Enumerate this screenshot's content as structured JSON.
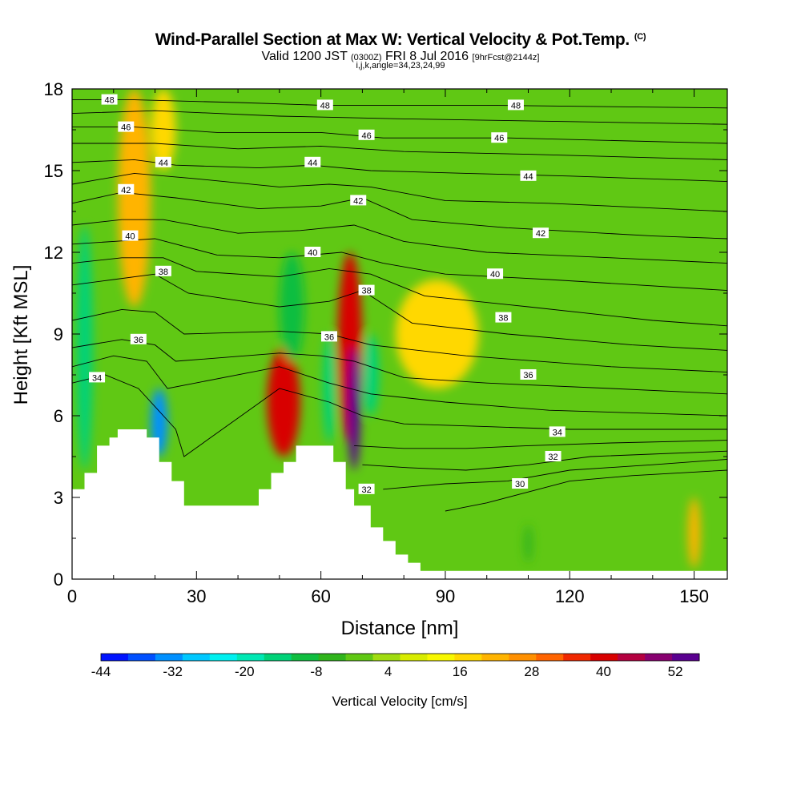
{
  "title": {
    "main": "Wind-Parallel Section at Max W: Vertical Velocity & Pot.Temp.",
    "mark": "(C)",
    "valid_prefix": "Valid 1200 JST",
    "utc": "(0300Z)",
    "date": "FRI 8 Jul 2016",
    "forecast": "[9hrFcst@2144z]",
    "indices": "i,j,k,angle=34,23,24,99"
  },
  "chart_data": {
    "type": "heatmap",
    "xlabel": "Distance [nm]",
    "ylabel": "Height [Kft MSL]",
    "xlim": [
      0,
      158
    ],
    "ylim": [
      0,
      18
    ],
    "x_ticks": [
      0,
      30,
      60,
      90,
      120,
      150
    ],
    "y_ticks": [
      0,
      3,
      6,
      9,
      12,
      15,
      18
    ],
    "colorbar": {
      "label": "Vertical Velocity [cm/s]",
      "tick_labels": [
        "-44",
        "-32",
        "-20",
        "-8",
        "4",
        "16",
        "28",
        "40",
        "52"
      ],
      "tick_values": [
        -44,
        -32,
        -20,
        -8,
        4,
        16,
        28,
        40,
        52
      ],
      "min": -44,
      "max": 56,
      "step": 4,
      "colors": [
        "#0014ff",
        "#0050ff",
        "#0090ff",
        "#00c8ff",
        "#00f0f0",
        "#00e8b4",
        "#00d278",
        "#10be40",
        "#30b41c",
        "#60c814",
        "#a0dc10",
        "#d8ec00",
        "#f8f800",
        "#ffd800",
        "#ffb400",
        "#ff9000",
        "#ff6400",
        "#f02800",
        "#d80000",
        "#b40040",
        "#880070",
        "#5a0090"
      ]
    },
    "background_color": "#60c814",
    "updraft_cells": [
      {
        "x": 15,
        "ybot": 10,
        "ytop": 18,
        "w": 4,
        "value": 12
      },
      {
        "x": 22,
        "ybot": 15,
        "ytop": 18,
        "w": 3,
        "value": 8
      },
      {
        "x": 51,
        "ybot": 4.5,
        "ytop": 8.5,
        "w": 4,
        "value": 28
      },
      {
        "x": 67,
        "ybot": 5,
        "ytop": 12,
        "w": 3,
        "value": 28
      },
      {
        "x": 68,
        "ybot": 4,
        "ytop": 8.5,
        "w": 1.5,
        "value": 44
      },
      {
        "x": 88,
        "ybot": 7,
        "ytop": 11,
        "w": 10,
        "value": 8
      },
      {
        "x": 150,
        "ybot": 0.4,
        "ytop": 3,
        "w": 1.5,
        "value": 12
      }
    ],
    "downdraft_cells": [
      {
        "x": 3,
        "ybot": 4,
        "ytop": 13,
        "w": 2,
        "value": -20
      },
      {
        "x": 21,
        "ybot": 4.5,
        "ytop": 7,
        "w": 2,
        "value": -36
      },
      {
        "x": 53,
        "ybot": 8,
        "ytop": 12,
        "w": 3,
        "value": -16
      },
      {
        "x": 62,
        "ybot": 5,
        "ytop": 9,
        "w": 1.5,
        "value": -20
      },
      {
        "x": 72,
        "ybot": 6,
        "ytop": 9,
        "w": 2,
        "value": -20
      },
      {
        "x": 110,
        "ybot": 0.6,
        "ytop": 2,
        "w": 1,
        "value": -12
      }
    ],
    "terrain": [
      [
        0,
        3.3
      ],
      [
        3,
        3.3
      ],
      [
        3,
        3.9
      ],
      [
        6,
        3.9
      ],
      [
        6,
        4.9
      ],
      [
        9,
        4.9
      ],
      [
        9,
        5.2
      ],
      [
        11,
        5.2
      ],
      [
        11,
        5.5
      ],
      [
        18,
        5.5
      ],
      [
        18,
        5.2
      ],
      [
        21,
        5.2
      ],
      [
        21,
        4.3
      ],
      [
        24,
        4.3
      ],
      [
        24,
        3.6
      ],
      [
        27,
        3.6
      ],
      [
        27,
        2.7
      ],
      [
        30,
        2.7
      ],
      [
        30,
        2.7
      ],
      [
        42,
        2.7
      ],
      [
        42,
        2.7
      ],
      [
        45,
        2.7
      ],
      [
        45,
        3.3
      ],
      [
        48,
        3.3
      ],
      [
        48,
        3.9
      ],
      [
        51,
        3.9
      ],
      [
        51,
        4.3
      ],
      [
        54,
        4.3
      ],
      [
        54,
        4.9
      ],
      [
        63,
        4.9
      ],
      [
        63,
        4.3
      ],
      [
        66,
        4.3
      ],
      [
        66,
        3.3
      ],
      [
        68,
        3.3
      ],
      [
        68,
        2.7
      ],
      [
        72,
        2.7
      ],
      [
        72,
        1.9
      ],
      [
        75,
        1.9
      ],
      [
        75,
        1.4
      ],
      [
        78,
        1.4
      ],
      [
        78,
        0.9
      ],
      [
        81,
        0.9
      ],
      [
        81,
        0.6
      ],
      [
        84,
        0.6
      ],
      [
        84,
        0.3
      ],
      [
        158,
        0.3
      ]
    ],
    "theta_isentropes": [
      {
        "value": 30,
        "points": [
          [
            90,
            2.5
          ],
          [
            100,
            2.8
          ],
          [
            110,
            3.2
          ],
          [
            120,
            3.6
          ],
          [
            135,
            3.8
          ],
          [
            158,
            4.0
          ]
        ]
      },
      {
        "value": 31,
        "points": [
          [
            75,
            3.3
          ],
          [
            90,
            3.5
          ],
          [
            105,
            3.6
          ],
          [
            120,
            4.0
          ],
          [
            140,
            4.2
          ],
          [
            158,
            4.4
          ]
        ]
      },
      {
        "value": 32,
        "points": [
          [
            70,
            4.2
          ],
          [
            80,
            4.1
          ],
          [
            95,
            4.0
          ],
          [
            110,
            4.2
          ],
          [
            125,
            4.5
          ],
          [
            158,
            4.7
          ]
        ]
      },
      {
        "value": 33,
        "points": [
          [
            68,
            4.9
          ],
          [
            80,
            4.8
          ],
          [
            95,
            4.8
          ],
          [
            110,
            4.9
          ],
          [
            130,
            5.0
          ],
          [
            158,
            5.1
          ]
        ]
      },
      {
        "value": 34,
        "points": [
          [
            0,
            7.2
          ],
          [
            8,
            7.5
          ],
          [
            16,
            7.0
          ],
          [
            22,
            6.0
          ],
          [
            25,
            5.5
          ],
          [
            27,
            4.5
          ],
          [
            50,
            7.0
          ],
          [
            62,
            6.5
          ],
          [
            70,
            6.0
          ],
          [
            80,
            5.7
          ],
          [
            100,
            5.6
          ],
          [
            120,
            5.5
          ],
          [
            158,
            5.5
          ]
        ]
      },
      {
        "value": 35,
        "points": [
          [
            0,
            7.8
          ],
          [
            10,
            8.2
          ],
          [
            18,
            8.0
          ],
          [
            23,
            7.0
          ],
          [
            50,
            7.8
          ],
          [
            62,
            7.2
          ],
          [
            72,
            6.8
          ],
          [
            90,
            6.5
          ],
          [
            115,
            6.2
          ],
          [
            158,
            6.0
          ]
        ]
      },
      {
        "value": 36,
        "points": [
          [
            0,
            8.5
          ],
          [
            12,
            8.8
          ],
          [
            20,
            8.6
          ],
          [
            25,
            8.0
          ],
          [
            50,
            8.3
          ],
          [
            60,
            8.2
          ],
          [
            68,
            8.0
          ],
          [
            80,
            7.4
          ],
          [
            100,
            7.2
          ],
          [
            130,
            7.0
          ],
          [
            158,
            6.8
          ]
        ]
      },
      {
        "value": 37,
        "points": [
          [
            0,
            9.5
          ],
          [
            12,
            9.9
          ],
          [
            20,
            9.8
          ],
          [
            27,
            9.0
          ],
          [
            50,
            9.1
          ],
          [
            62,
            9.0
          ],
          [
            72,
            8.6
          ],
          [
            95,
            8.2
          ],
          [
            130,
            7.8
          ],
          [
            158,
            7.6
          ]
        ]
      },
      {
        "value": 38,
        "points": [
          [
            0,
            10.8
          ],
          [
            10,
            11.0
          ],
          [
            20,
            11.2
          ],
          [
            28,
            10.5
          ],
          [
            50,
            10.0
          ],
          [
            62,
            10.2
          ],
          [
            70,
            10.6
          ],
          [
            82,
            9.4
          ],
          [
            105,
            9.0
          ],
          [
            135,
            8.6
          ],
          [
            158,
            8.4
          ]
        ]
      },
      {
        "value": 39,
        "points": [
          [
            0,
            11.6
          ],
          [
            12,
            11.8
          ],
          [
            22,
            11.8
          ],
          [
            30,
            11.3
          ],
          [
            50,
            11.1
          ],
          [
            62,
            11.4
          ],
          [
            72,
            11.2
          ],
          [
            85,
            10.4
          ],
          [
            110,
            10.0
          ],
          [
            140,
            9.5
          ],
          [
            158,
            9.3
          ]
        ]
      },
      {
        "value": 40,
        "points": [
          [
            0,
            12.3
          ],
          [
            10,
            12.4
          ],
          [
            20,
            12.5
          ],
          [
            35,
            11.9
          ],
          [
            50,
            11.8
          ],
          [
            65,
            12.0
          ],
          [
            75,
            11.6
          ],
          [
            90,
            11.2
          ],
          [
            115,
            11.0
          ],
          [
            158,
            10.6
          ]
        ]
      },
      {
        "value": 41,
        "points": [
          [
            0,
            13.0
          ],
          [
            12,
            13.2
          ],
          [
            22,
            13.2
          ],
          [
            40,
            12.7
          ],
          [
            55,
            12.8
          ],
          [
            68,
            13.0
          ],
          [
            80,
            12.4
          ],
          [
            100,
            12.0
          ],
          [
            130,
            11.8
          ],
          [
            158,
            11.6
          ]
        ]
      },
      {
        "value": 42,
        "points": [
          [
            0,
            13.8
          ],
          [
            12,
            14.2
          ],
          [
            25,
            14.0
          ],
          [
            45,
            13.6
          ],
          [
            60,
            13.7
          ],
          [
            70,
            14.0
          ],
          [
            82,
            13.2
          ],
          [
            105,
            12.9
          ],
          [
            140,
            12.6
          ],
          [
            158,
            12.5
          ]
        ]
      },
      {
        "value": 43,
        "points": [
          [
            0,
            14.5
          ],
          [
            15,
            14.9
          ],
          [
            30,
            14.7
          ],
          [
            50,
            14.4
          ],
          [
            62,
            14.5
          ],
          [
            72,
            14.4
          ],
          [
            90,
            13.9
          ],
          [
            115,
            13.8
          ],
          [
            158,
            13.5
          ]
        ]
      },
      {
        "value": 44,
        "points": [
          [
            0,
            15.3
          ],
          [
            15,
            15.4
          ],
          [
            25,
            15.2
          ],
          [
            45,
            15.1
          ],
          [
            58,
            15.2
          ],
          [
            72,
            15.0
          ],
          [
            95,
            14.9
          ],
          [
            120,
            14.8
          ],
          [
            158,
            14.6
          ]
        ]
      },
      {
        "value": 45,
        "points": [
          [
            0,
            16.0
          ],
          [
            20,
            16.0
          ],
          [
            40,
            15.8
          ],
          [
            60,
            15.9
          ],
          [
            80,
            15.7
          ],
          [
            110,
            15.6
          ],
          [
            158,
            15.4
          ]
        ]
      },
      {
        "value": 46,
        "points": [
          [
            0,
            16.6
          ],
          [
            15,
            16.6
          ],
          [
            35,
            16.4
          ],
          [
            60,
            16.4
          ],
          [
            75,
            16.2
          ],
          [
            105,
            16.2
          ],
          [
            158,
            16.0
          ]
        ]
      },
      {
        "value": 47,
        "points": [
          [
            0,
            17.1
          ],
          [
            20,
            17.2
          ],
          [
            50,
            17.0
          ],
          [
            80,
            16.9
          ],
          [
            120,
            16.8
          ],
          [
            158,
            16.7
          ]
        ]
      },
      {
        "value": 48,
        "points": [
          [
            0,
            17.6
          ],
          [
            15,
            17.6
          ],
          [
            40,
            17.5
          ],
          [
            60,
            17.4
          ],
          [
            100,
            17.4
          ],
          [
            158,
            17.3
          ]
        ]
      }
    ],
    "isentrope_labels": [
      {
        "text": "48",
        "x": 9,
        "y": 17.6
      },
      {
        "text": "48",
        "x": 61,
        "y": 17.4
      },
      {
        "text": "48",
        "x": 107,
        "y": 17.4
      },
      {
        "text": "46",
        "x": 13,
        "y": 16.6
      },
      {
        "text": "46",
        "x": 71,
        "y": 16.3
      },
      {
        "text": "46",
        "x": 103,
        "y": 16.2
      },
      {
        "text": "44",
        "x": 22,
        "y": 15.3
      },
      {
        "text": "44",
        "x": 58,
        "y": 15.3
      },
      {
        "text": "44",
        "x": 110,
        "y": 14.8
      },
      {
        "text": "42",
        "x": 13,
        "y": 14.3
      },
      {
        "text": "42",
        "x": 113,
        "y": 12.7
      },
      {
        "text": "42",
        "x": 69,
        "y": 13.9
      },
      {
        "text": "40",
        "x": 14,
        "y": 12.6
      },
      {
        "text": "40",
        "x": 58,
        "y": 12.0
      },
      {
        "text": "40",
        "x": 102,
        "y": 11.2
      },
      {
        "text": "38",
        "x": 22,
        "y": 11.3
      },
      {
        "text": "38",
        "x": 71,
        "y": 10.6
      },
      {
        "text": "38",
        "x": 104,
        "y": 9.6
      },
      {
        "text": "36",
        "x": 16,
        "y": 8.8
      },
      {
        "text": "36",
        "x": 62,
        "y": 8.9
      },
      {
        "text": "36",
        "x": 110,
        "y": 7.5
      },
      {
        "text": "34",
        "x": 6,
        "y": 7.4
      },
      {
        "text": "34",
        "x": 117,
        "y": 5.4
      },
      {
        "text": "32",
        "x": 116,
        "y": 4.5
      },
      {
        "text": "32",
        "x": 71,
        "y": 3.3
      },
      {
        "text": "30",
        "x": 108,
        "y": 3.5
      }
    ]
  }
}
